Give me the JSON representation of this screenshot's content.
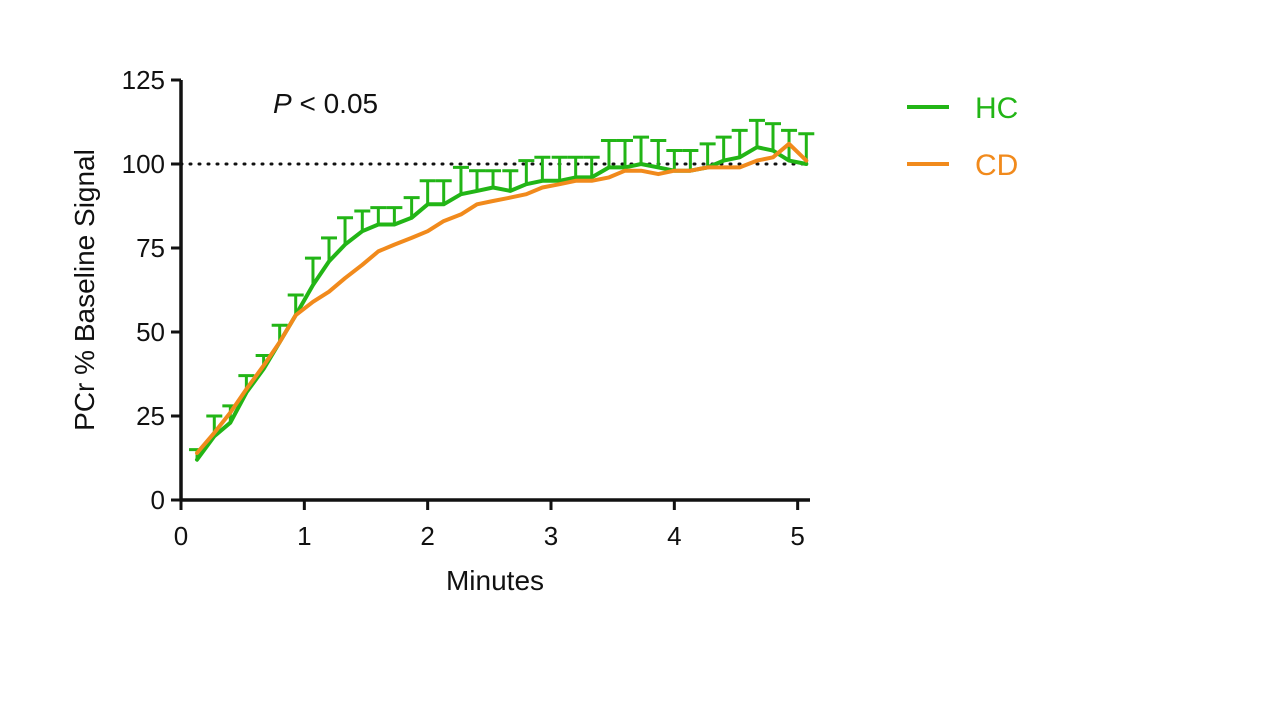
{
  "colors": {
    "HC": "#22b516",
    "CD": "#f18a1c",
    "axis": "#111111"
  },
  "chart_data": {
    "type": "line",
    "title": "",
    "xlabel": "Minutes",
    "ylabel": "PCr % Baseline Signal",
    "xlim": [
      0,
      5.1
    ],
    "ylim": [
      0,
      125
    ],
    "xticks": [
      0,
      1,
      2,
      3,
      4,
      5
    ],
    "yticks": [
      0,
      25,
      50,
      75,
      100,
      125
    ],
    "reference_line": {
      "y": 100,
      "style": "dotted"
    },
    "annotation": {
      "italic": "P",
      "rest": " < 0.05"
    },
    "legend_position": "top-right, outside plot",
    "x": [
      0.13,
      0.27,
      0.4,
      0.53,
      0.67,
      0.8,
      0.93,
      1.07,
      1.2,
      1.33,
      1.47,
      1.6,
      1.73,
      1.87,
      2.0,
      2.13,
      2.27,
      2.4,
      2.53,
      2.67,
      2.8,
      2.93,
      3.07,
      3.2,
      3.33,
      3.47,
      3.6,
      3.73,
      3.87,
      4.0,
      4.13,
      4.27,
      4.4,
      4.53,
      4.67,
      4.8,
      4.93,
      5.07
    ],
    "series": [
      {
        "name": "HC",
        "color": "#22b516",
        "error_direction": "up",
        "values": [
          12,
          19,
          23,
          32,
          39,
          47,
          55,
          64,
          71,
          76,
          80,
          82,
          82,
          84,
          88,
          88,
          91,
          92,
          93,
          92,
          94,
          95,
          95,
          96,
          96,
          99,
          99,
          100,
          99,
          98,
          98,
          99,
          101,
          102,
          105,
          104,
          101,
          100
        ],
        "error": [
          3,
          6,
          5,
          5,
          4,
          5,
          6,
          8,
          7,
          8,
          6,
          5,
          5,
          6,
          7,
          7,
          8,
          6,
          5,
          6,
          7,
          7,
          7,
          6,
          6,
          8,
          8,
          8,
          8,
          6,
          6,
          7,
          7,
          8,
          8,
          8,
          9,
          9
        ]
      },
      {
        "name": "CD",
        "color": "#f18a1c",
        "error_direction": "down",
        "values": [
          14,
          20,
          26,
          33,
          40,
          47,
          55,
          59,
          62,
          66,
          70,
          74,
          76,
          78,
          80,
          83,
          85,
          88,
          89,
          90,
          91,
          93,
          94,
          95,
          95,
          96,
          98,
          98,
          97,
          98,
          98,
          99,
          99,
          99,
          101,
          102,
          106,
          101
        ]
      }
    ]
  }
}
